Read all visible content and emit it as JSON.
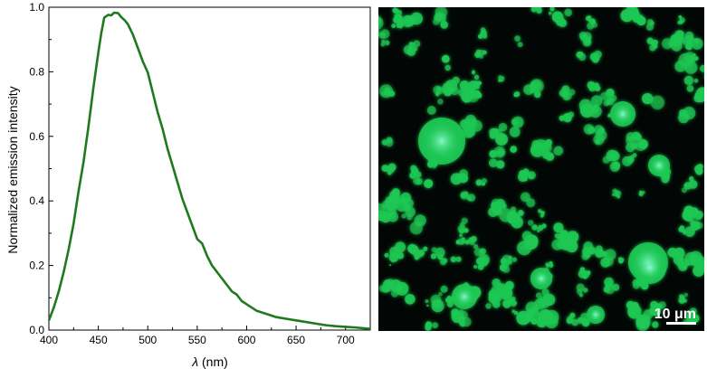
{
  "chart_data": {
    "type": "line",
    "title": "",
    "xlabel_symbol": "λ",
    "xlabel_unit": " (nm)",
    "ylabel": "Normalized emission intensity",
    "xlim": [
      400,
      725
    ],
    "ylim": [
      0.0,
      1.0
    ],
    "x_ticks": [
      400,
      450,
      500,
      550,
      600,
      650,
      700
    ],
    "y_ticks": [
      "0.0",
      "0.2",
      "0.4",
      "0.6",
      "0.8",
      "1.0"
    ],
    "grid": false,
    "legend": "none",
    "series": [
      {
        "color": "#1f7a1f",
        "x": [
          400,
          405,
          410,
          415,
          420,
          425,
          430,
          435,
          440,
          445,
          450,
          453,
          456,
          460,
          463,
          466,
          470,
          473,
          477,
          480,
          485,
          490,
          495,
          500,
          505,
          510,
          515,
          520,
          525,
          530,
          535,
          540,
          545,
          550,
          555,
          560,
          565,
          570,
          575,
          580,
          585,
          590,
          595,
          600,
          610,
          620,
          630,
          640,
          650,
          660,
          670,
          680,
          690,
          700,
          710,
          720,
          725
        ],
        "y": [
          0.03,
          0.07,
          0.12,
          0.18,
          0.25,
          0.33,
          0.43,
          0.52,
          0.63,
          0.75,
          0.86,
          0.92,
          0.96,
          0.97,
          0.97,
          0.98,
          0.98,
          0.97,
          0.96,
          0.95,
          0.92,
          0.88,
          0.84,
          0.79,
          0.73,
          0.67,
          0.62,
          0.56,
          0.51,
          0.46,
          0.41,
          0.37,
          0.33,
          0.29,
          0.26,
          0.23,
          0.2,
          0.18,
          0.16,
          0.14,
          0.12,
          0.11,
          0.09,
          0.08,
          0.06,
          0.05,
          0.04,
          0.035,
          0.03,
          0.025,
          0.02,
          0.015,
          0.012,
          0.01,
          0.008,
          0.005,
          0.004
        ]
      }
    ]
  },
  "micrograph": {
    "scale_bar_label": "10 μm",
    "background_color": "#020604",
    "particle_color": "#1fc853"
  }
}
